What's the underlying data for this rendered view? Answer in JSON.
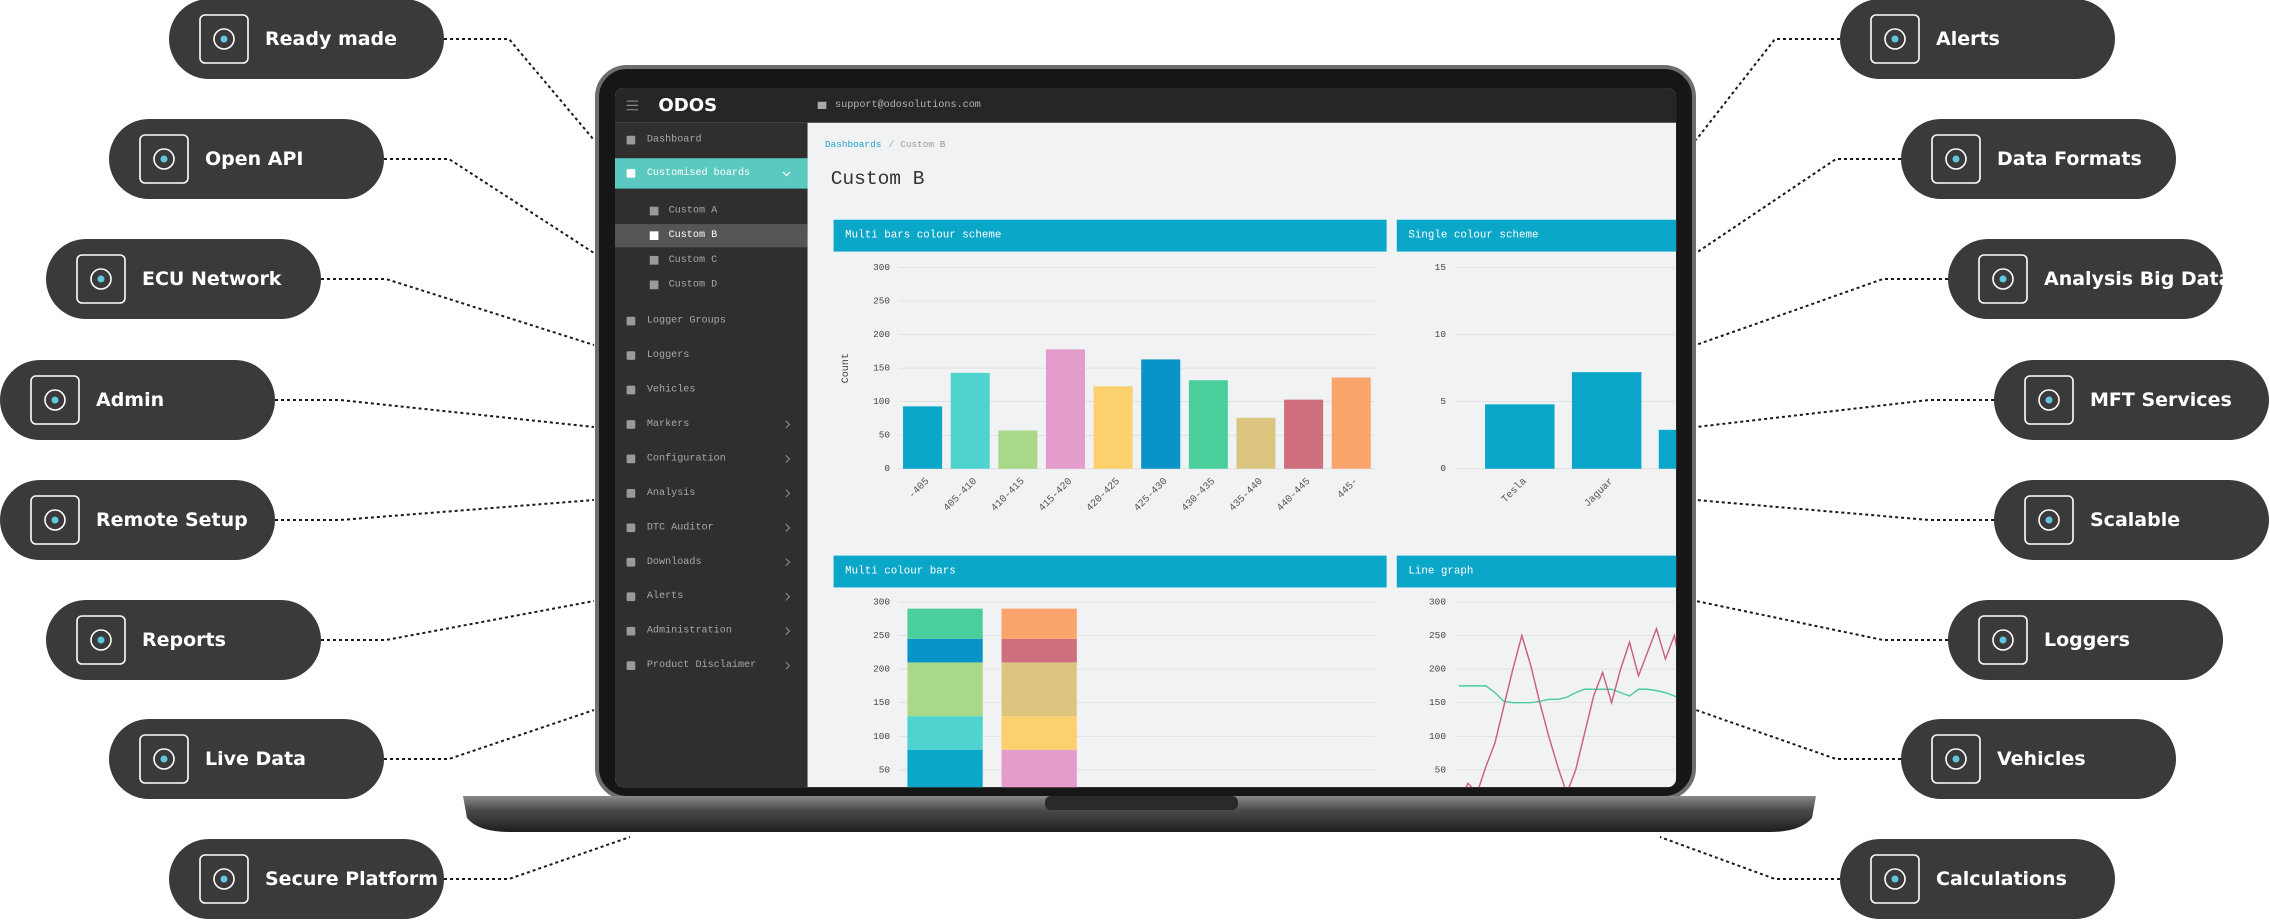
{
  "features": {
    "left": [
      "Ready made",
      "Open API",
      "ECU Network",
      "Admin",
      "Remote Setup",
      "Reports",
      "Live Data",
      "Secure Platform"
    ],
    "right": [
      "Alerts",
      "Data Formats",
      "Analysis Big Data",
      "MFT Services",
      "Scalable",
      "Loggers",
      "Vehicles",
      "Calculations"
    ]
  },
  "app": {
    "logo": "ODOS",
    "email": "support@odosolutions.com",
    "sidebar": [
      {
        "label": "Dashboard"
      },
      {
        "label": "Customised boards",
        "children": [
          "Custom A",
          "Custom B",
          "Custom C",
          "Custom D"
        ],
        "active_child": 1
      },
      {
        "label": "Logger Groups"
      },
      {
        "label": "Loggers"
      },
      {
        "label": "Vehicles"
      },
      {
        "label": "Markers",
        "submenu": true
      },
      {
        "label": "Configuration",
        "submenu": true
      },
      {
        "label": "Analysis",
        "submenu": true
      },
      {
        "label": "DTC Auditor",
        "submenu": true
      },
      {
        "label": "Downloads",
        "submenu": true
      },
      {
        "label": "Alerts",
        "submenu": true
      },
      {
        "label": "Administration",
        "submenu": true
      },
      {
        "label": "Product Disclaimer",
        "submenu": true
      }
    ],
    "breadcrumb": [
      "Dashboards",
      "Custom B"
    ],
    "breadcrumb_separator": "/",
    "page_title": "Custom B"
  },
  "chart_data": [
    {
      "type": "bar",
      "title": "Multi bars colour scheme",
      "y_label": "Count",
      "categories": [
        "-405",
        "405-410",
        "410-415",
        "415-420",
        "420-425",
        "425-430",
        "430-435",
        "435-440",
        "440-445",
        "445-"
      ],
      "values": [
        93,
        143,
        57,
        178,
        123,
        163,
        132,
        76,
        103,
        136
      ],
      "colors": [
        "#0ba7c9",
        "#4fd3cf",
        "#a8d888",
        "#e39ccb",
        "#fdd06e",
        "#0a93c7",
        "#4acf9c",
        "#dcc67f",
        "#cf6f7e",
        "#fba56d"
      ],
      "ylim": [
        0,
        300
      ],
      "yticks": [
        0,
        50,
        100,
        150,
        200,
        250,
        300
      ],
      "grid": true
    },
    {
      "type": "bar",
      "title": "Single colour scheme",
      "categories": [
        "Tesla",
        "Jaguar",
        null
      ],
      "values": [
        4.8,
        7.2,
        2.9
      ],
      "color": "#0ba7c9",
      "ylim": [
        0,
        15
      ],
      "yticks": [
        0,
        5,
        10,
        15
      ],
      "grid": true
    },
    {
      "type": "stacked_bar",
      "title": "Multi colour bars",
      "series": [
        {
          "colors": [
            "#0ba7c9",
            "#e39ccb"
          ],
          "values": [
            80,
            80
          ]
        },
        {
          "colors": [
            "#4fd3cf",
            "#fdd06e"
          ],
          "values": [
            50,
            50
          ]
        },
        {
          "colors": [
            "#a8d888",
            "#dcc67f"
          ],
          "values": [
            80,
            80
          ]
        },
        {
          "colors": [
            "#0a93c7",
            "#cf6f7e"
          ],
          "values": [
            35,
            35
          ]
        },
        {
          "colors": [
            "#4acf9c",
            "#fba56d"
          ],
          "values": [
            45,
            45
          ]
        }
      ],
      "ylim": [
        0,
        300
      ],
      "yticks": [
        50,
        100,
        150,
        200,
        250,
        300
      ],
      "grid": true
    },
    {
      "type": "line",
      "title": "Line graph",
      "series": [
        {
          "color": "#4acf9c",
          "values": [
            175,
            175,
            175,
            175,
            165,
            152,
            150,
            150,
            150,
            152,
            155,
            155,
            158,
            165,
            170,
            170,
            170,
            170,
            165,
            160,
            170,
            170,
            168,
            165,
            160,
            150
          ]
        },
        {
          "color": "#c9607e",
          "values": [
            0,
            30,
            15,
            55,
            90,
            145,
            200,
            250,
            205,
            150,
            100,
            55,
            15,
            50,
            105,
            160,
            195,
            150,
            200,
            240,
            190,
            225,
            260,
            215,
            250,
            180
          ]
        }
      ],
      "ylim": [
        0,
        300
      ],
      "yticks": [
        50,
        100,
        150,
        200,
        250,
        300
      ],
      "grid": true
    }
  ]
}
